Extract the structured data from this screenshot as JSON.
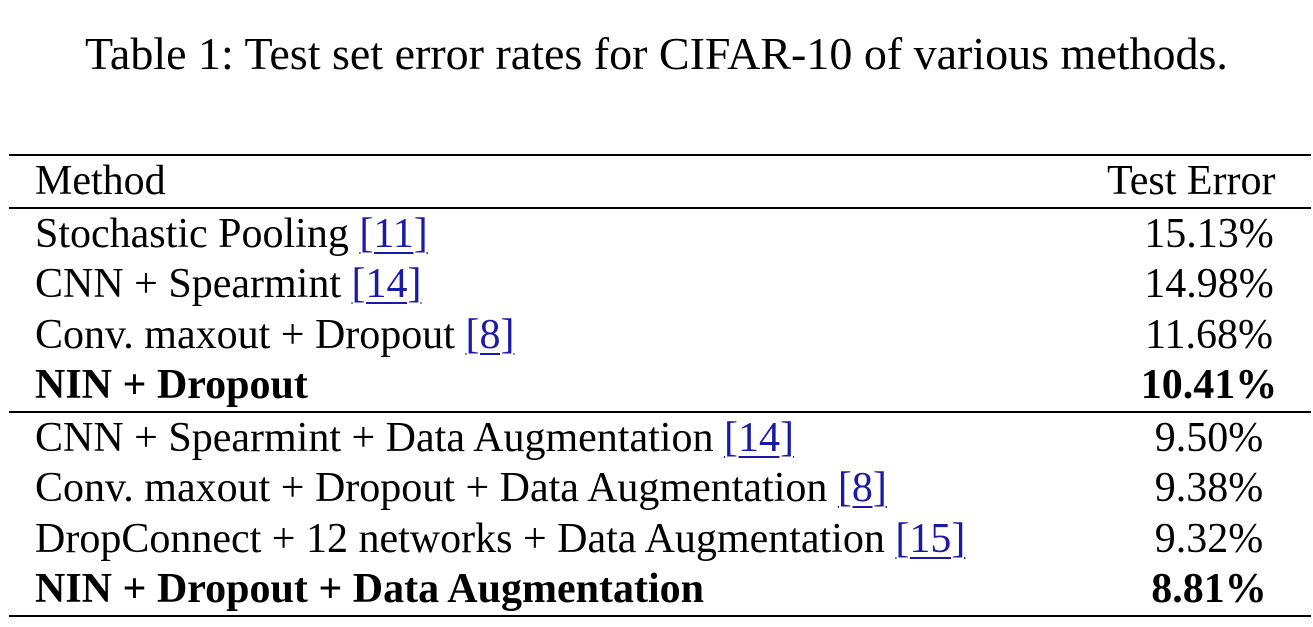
{
  "caption": "Table 1: Test set error rates for CIFAR-10 of various methods.",
  "table": {
    "headers": {
      "method": "Method",
      "error": "Test Error"
    },
    "group1": [
      {
        "method": "Stochastic Pooling ",
        "cite": "[11]",
        "error": "15.13%",
        "bold": false
      },
      {
        "method": "CNN + Spearmint ",
        "cite": "[14]",
        "error": "14.98%",
        "bold": false
      },
      {
        "method": "Conv. maxout + Dropout ",
        "cite": "[8]",
        "error": "11.68%",
        "bold": false
      },
      {
        "method": "NIN + Dropout",
        "cite": "",
        "error": "10.41%",
        "bold": true
      }
    ],
    "group2": [
      {
        "method": "CNN + Spearmint + Data Augmentation ",
        "cite": "[14]",
        "error": "9.50%",
        "bold": false
      },
      {
        "method": "Conv. maxout + Dropout + Data Augmentation ",
        "cite": "[8]",
        "error": "9.38%",
        "bold": false
      },
      {
        "method": "DropConnect + 12 networks + Data Augmentation ",
        "cite": "[15]",
        "error": "9.32%",
        "bold": false
      },
      {
        "method": "NIN + Dropout + Data Augmentation",
        "cite": "",
        "error": "8.81%",
        "bold": true
      }
    ]
  }
}
